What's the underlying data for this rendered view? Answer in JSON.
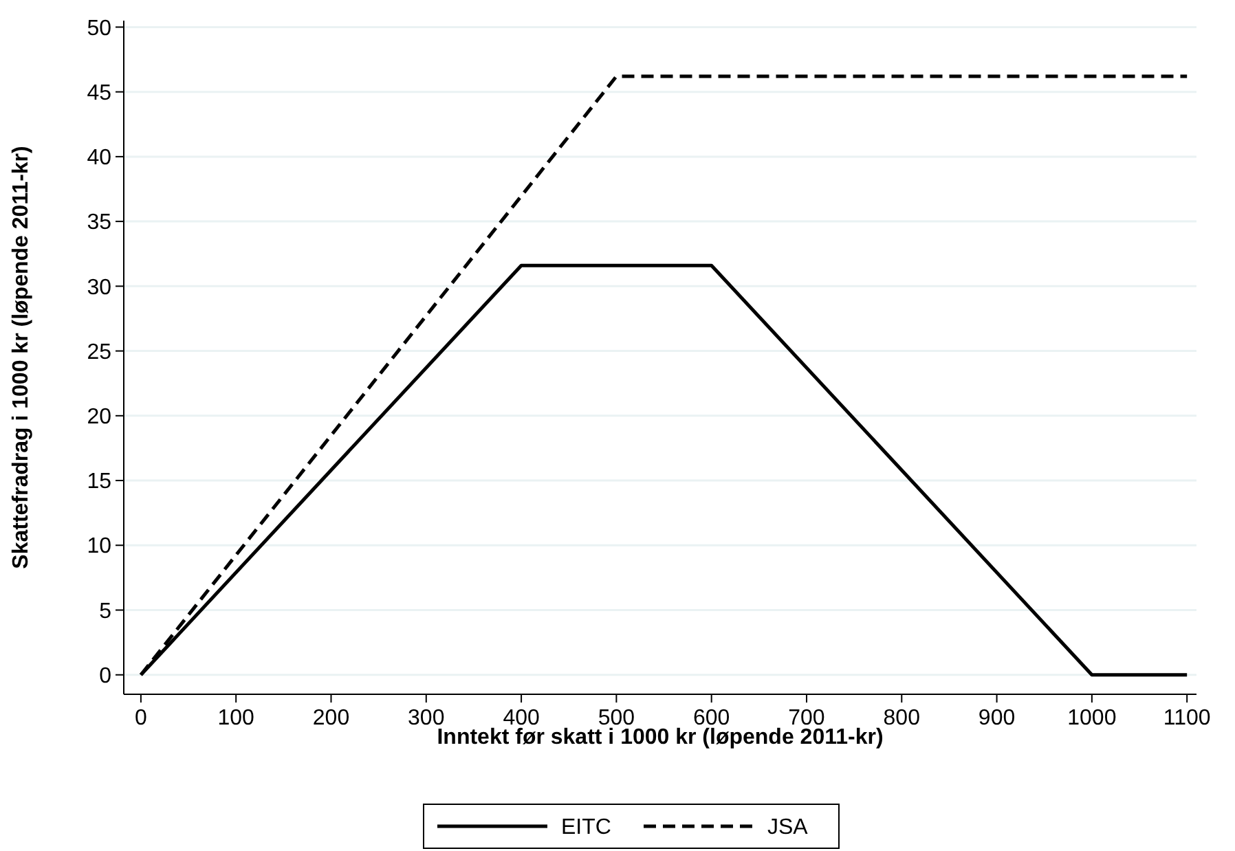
{
  "chart_data": {
    "type": "line",
    "xlabel": "Inntekt før skatt i 1000 kr (løpende 2011-kr)",
    "ylabel": "Skattefradrag i 1000 kr (løpende 2011-kr)",
    "xlim": [
      -18,
      1110
    ],
    "xticks": [
      0,
      100,
      200,
      300,
      400,
      500,
      600,
      700,
      800,
      900,
      1000,
      1100
    ],
    "ylim": [
      -1.5,
      50.5
    ],
    "yticks": [
      0,
      5,
      10,
      15,
      20,
      25,
      30,
      35,
      40,
      45,
      50
    ],
    "grid": "y",
    "legend": "bottom",
    "series": [
      {
        "name": "EITC",
        "color": "#000000",
        "line_style": "solid",
        "x": [
          0,
          400,
          600,
          1000,
          1100
        ],
        "values": [
          0,
          31.6,
          31.6,
          0,
          0
        ]
      },
      {
        "name": "JSA",
        "color": "#000000",
        "line_style": "dashed",
        "x": [
          0,
          500,
          1100
        ],
        "values": [
          0,
          46.2,
          46.2
        ]
      }
    ]
  }
}
